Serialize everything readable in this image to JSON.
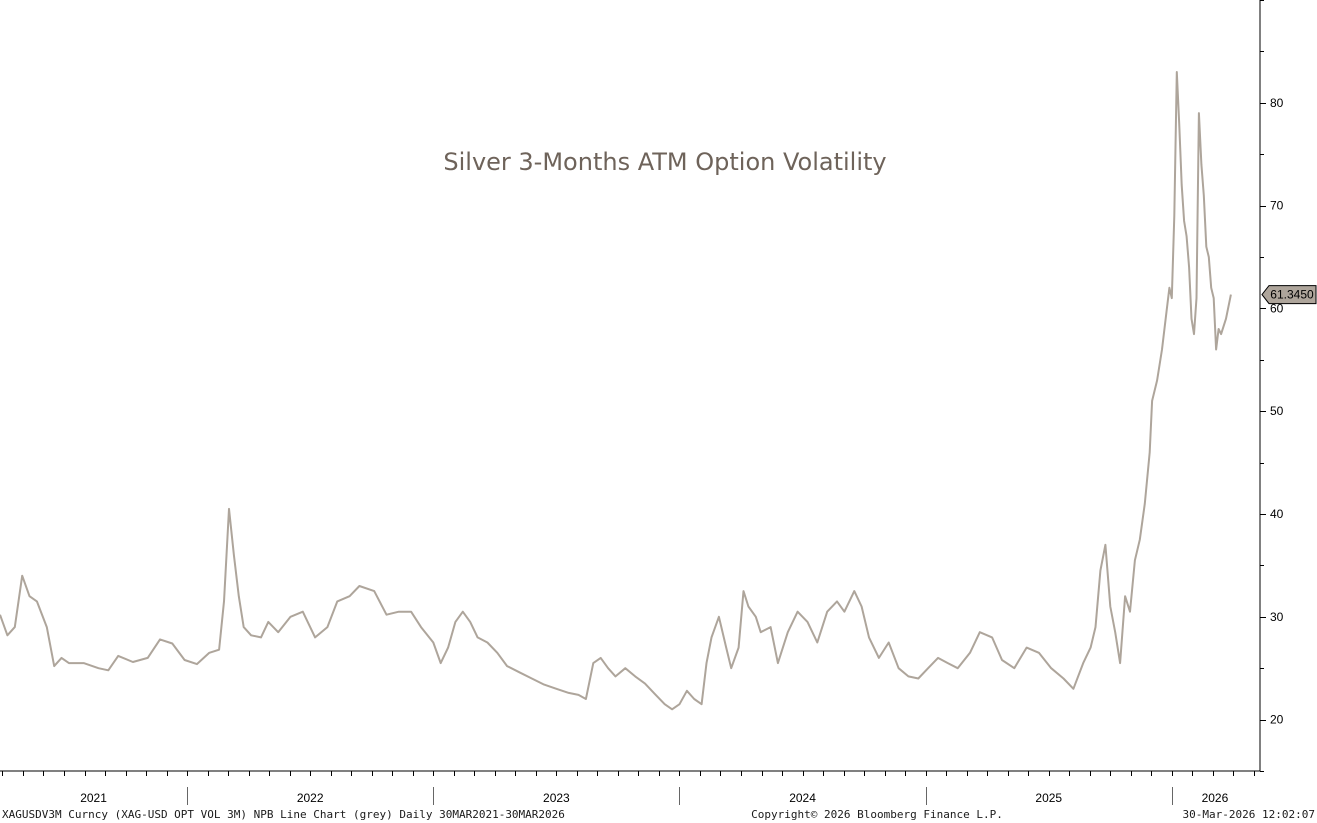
{
  "chart_data": {
    "type": "line",
    "title": "Silver 3-Months ATM Option Volatility",
    "xlabel": "",
    "ylabel": "",
    "series": [
      {
        "name": "XAGUSDV3M Curncy",
        "color": "#aea59b",
        "points": [
          [
            2021.24,
            30.2
          ],
          [
            2021.27,
            28.2
          ],
          [
            2021.3,
            29.0
          ],
          [
            2021.33,
            34.0
          ],
          [
            2021.36,
            32.0
          ],
          [
            2021.39,
            31.5
          ],
          [
            2021.43,
            29.0
          ],
          [
            2021.46,
            25.2
          ],
          [
            2021.49,
            26.0
          ],
          [
            2021.52,
            25.5
          ],
          [
            2021.58,
            25.5
          ],
          [
            2021.64,
            25.0
          ],
          [
            2021.68,
            24.8
          ],
          [
            2021.72,
            26.2
          ],
          [
            2021.78,
            25.6
          ],
          [
            2021.84,
            26.0
          ],
          [
            2021.89,
            27.8
          ],
          [
            2021.94,
            27.4
          ],
          [
            2021.99,
            25.8
          ],
          [
            2022.04,
            25.4
          ],
          [
            2022.09,
            26.5
          ],
          [
            2022.13,
            26.8
          ],
          [
            2022.15,
            31.5
          ],
          [
            2022.17,
            40.5
          ],
          [
            2022.19,
            36.0
          ],
          [
            2022.21,
            32.0
          ],
          [
            2022.23,
            29.0
          ],
          [
            2022.26,
            28.2
          ],
          [
            2022.3,
            28.0
          ],
          [
            2022.33,
            29.5
          ],
          [
            2022.37,
            28.5
          ],
          [
            2022.42,
            30.0
          ],
          [
            2022.47,
            30.5
          ],
          [
            2022.52,
            28.0
          ],
          [
            2022.57,
            29.0
          ],
          [
            2022.61,
            31.5
          ],
          [
            2022.66,
            32.0
          ],
          [
            2022.7,
            33.0
          ],
          [
            2022.76,
            32.5
          ],
          [
            2022.81,
            30.2
          ],
          [
            2022.86,
            30.5
          ],
          [
            2022.91,
            30.5
          ],
          [
            2022.95,
            29.0
          ],
          [
            2023.0,
            27.5
          ],
          [
            2023.03,
            25.5
          ],
          [
            2023.06,
            27.0
          ],
          [
            2023.09,
            29.5
          ],
          [
            2023.12,
            30.5
          ],
          [
            2023.15,
            29.5
          ],
          [
            2023.18,
            28.0
          ],
          [
            2023.22,
            27.5
          ],
          [
            2023.26,
            26.5
          ],
          [
            2023.3,
            25.2
          ],
          [
            2023.35,
            24.6
          ],
          [
            2023.4,
            24.0
          ],
          [
            2023.45,
            23.4
          ],
          [
            2023.5,
            23.0
          ],
          [
            2023.55,
            22.6
          ],
          [
            2023.59,
            22.4
          ],
          [
            2023.62,
            22.0
          ],
          [
            2023.65,
            25.5
          ],
          [
            2023.68,
            26.0
          ],
          [
            2023.71,
            25.0
          ],
          [
            2023.74,
            24.2
          ],
          [
            2023.78,
            25.0
          ],
          [
            2023.82,
            24.2
          ],
          [
            2023.86,
            23.5
          ],
          [
            2023.9,
            22.5
          ],
          [
            2023.94,
            21.5
          ],
          [
            2023.97,
            21.0
          ],
          [
            2024.0,
            21.5
          ],
          [
            2024.03,
            22.8
          ],
          [
            2024.06,
            22.0
          ],
          [
            2024.09,
            21.5
          ],
          [
            2024.11,
            25.5
          ],
          [
            2024.13,
            28.0
          ],
          [
            2024.16,
            30.0
          ],
          [
            2024.19,
            27.0
          ],
          [
            2024.21,
            25.0
          ],
          [
            2024.24,
            27.0
          ],
          [
            2024.26,
            32.5
          ],
          [
            2024.28,
            31.0
          ],
          [
            2024.31,
            30.0
          ],
          [
            2024.33,
            28.5
          ],
          [
            2024.37,
            29.0
          ],
          [
            2024.4,
            25.5
          ],
          [
            2024.44,
            28.5
          ],
          [
            2024.48,
            30.5
          ],
          [
            2024.52,
            29.5
          ],
          [
            2024.56,
            27.5
          ],
          [
            2024.6,
            30.5
          ],
          [
            2024.64,
            31.5
          ],
          [
            2024.67,
            30.5
          ],
          [
            2024.71,
            32.5
          ],
          [
            2024.74,
            31.0
          ],
          [
            2024.77,
            28.0
          ],
          [
            2024.81,
            26.0
          ],
          [
            2024.85,
            27.5
          ],
          [
            2024.89,
            25.0
          ],
          [
            2024.93,
            24.2
          ],
          [
            2024.97,
            24.0
          ],
          [
            2025.01,
            25.0
          ],
          [
            2025.05,
            26.0
          ],
          [
            2025.09,
            25.5
          ],
          [
            2025.13,
            25.0
          ],
          [
            2025.18,
            26.5
          ],
          [
            2025.22,
            28.5
          ],
          [
            2025.27,
            28.0
          ],
          [
            2025.31,
            25.8
          ],
          [
            2025.36,
            25.0
          ],
          [
            2025.41,
            27.0
          ],
          [
            2025.46,
            26.5
          ],
          [
            2025.51,
            25.0
          ],
          [
            2025.56,
            24.0
          ],
          [
            2025.6,
            23.0
          ],
          [
            2025.64,
            25.5
          ],
          [
            2025.67,
            27.0
          ],
          [
            2025.69,
            29.0
          ],
          [
            2025.71,
            34.5
          ],
          [
            2025.73,
            37.0
          ],
          [
            2025.75,
            31.0
          ],
          [
            2025.77,
            28.5
          ],
          [
            2025.79,
            25.5
          ],
          [
            2025.81,
            32.0
          ],
          [
            2025.83,
            30.5
          ],
          [
            2025.85,
            35.5
          ],
          [
            2025.87,
            37.5
          ],
          [
            2025.89,
            41.0
          ],
          [
            2025.91,
            46.0
          ],
          [
            2025.92,
            51.0
          ],
          [
            2025.94,
            53.0
          ],
          [
            2025.96,
            56.0
          ],
          [
            2025.98,
            60.0
          ],
          [
            2025.99,
            62.0
          ],
          [
            2026.0,
            61.0
          ],
          [
            2026.01,
            69.0
          ],
          [
            2026.02,
            83.0
          ],
          [
            2026.03,
            78.0
          ],
          [
            2026.04,
            72.0
          ],
          [
            2026.05,
            68.5
          ],
          [
            2026.06,
            67.0
          ],
          [
            2026.07,
            64.0
          ],
          [
            2026.08,
            59.0
          ],
          [
            2026.09,
            57.5
          ],
          [
            2026.1,
            61.0
          ],
          [
            2026.11,
            79.0
          ],
          [
            2026.12,
            74.0
          ],
          [
            2026.13,
            71.0
          ],
          [
            2026.14,
            66.0
          ],
          [
            2026.15,
            65.0
          ],
          [
            2026.16,
            62.0
          ],
          [
            2026.17,
            61.0
          ],
          [
            2026.18,
            56.0
          ],
          [
            2026.19,
            58.0
          ],
          [
            2026.2,
            57.5
          ],
          [
            2026.22,
            59.0
          ],
          [
            2026.24,
            61.345
          ]
        ]
      }
    ],
    "last_value_label": "61.3450",
    "x_ticks": [
      "2021",
      "2022",
      "2023",
      "2024",
      "2025",
      "2026"
    ],
    "y_ticks": [
      20,
      30,
      40,
      50,
      60,
      70,
      80
    ],
    "xlim": [
      2021.24,
      2026.35
    ],
    "ylim": [
      15,
      90
    ],
    "grid": false,
    "legend": "none"
  },
  "footer": {
    "left": "XAGUSDV3M Curncy (XAG-USD OPT VOL 3M) NPB Line Chart (grey) Daily 30MAR2021-30MAR2026",
    "center": "Copyright© 2026 Bloomberg Finance L.P.",
    "right": "30-Mar-2026 12:02:07"
  },
  "colors": {
    "line": "#aea59b",
    "title": "#6e635a",
    "callout_fill": "#aea59b"
  }
}
